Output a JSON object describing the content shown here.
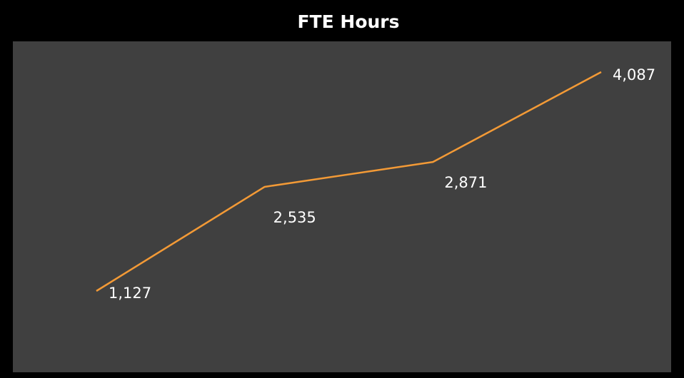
{
  "chart_data": {
    "type": "line",
    "title": "FTE Hours",
    "categories": [
      null,
      null,
      null,
      null
    ],
    "series": [
      {
        "color": "#f39a36",
        "values": [
          1127,
          2535,
          2871,
          4087
        ],
        "value_labels": [
          "1,127",
          "2,535",
          "2,871",
          "4,087"
        ]
      }
    ],
    "grid": false
  }
}
